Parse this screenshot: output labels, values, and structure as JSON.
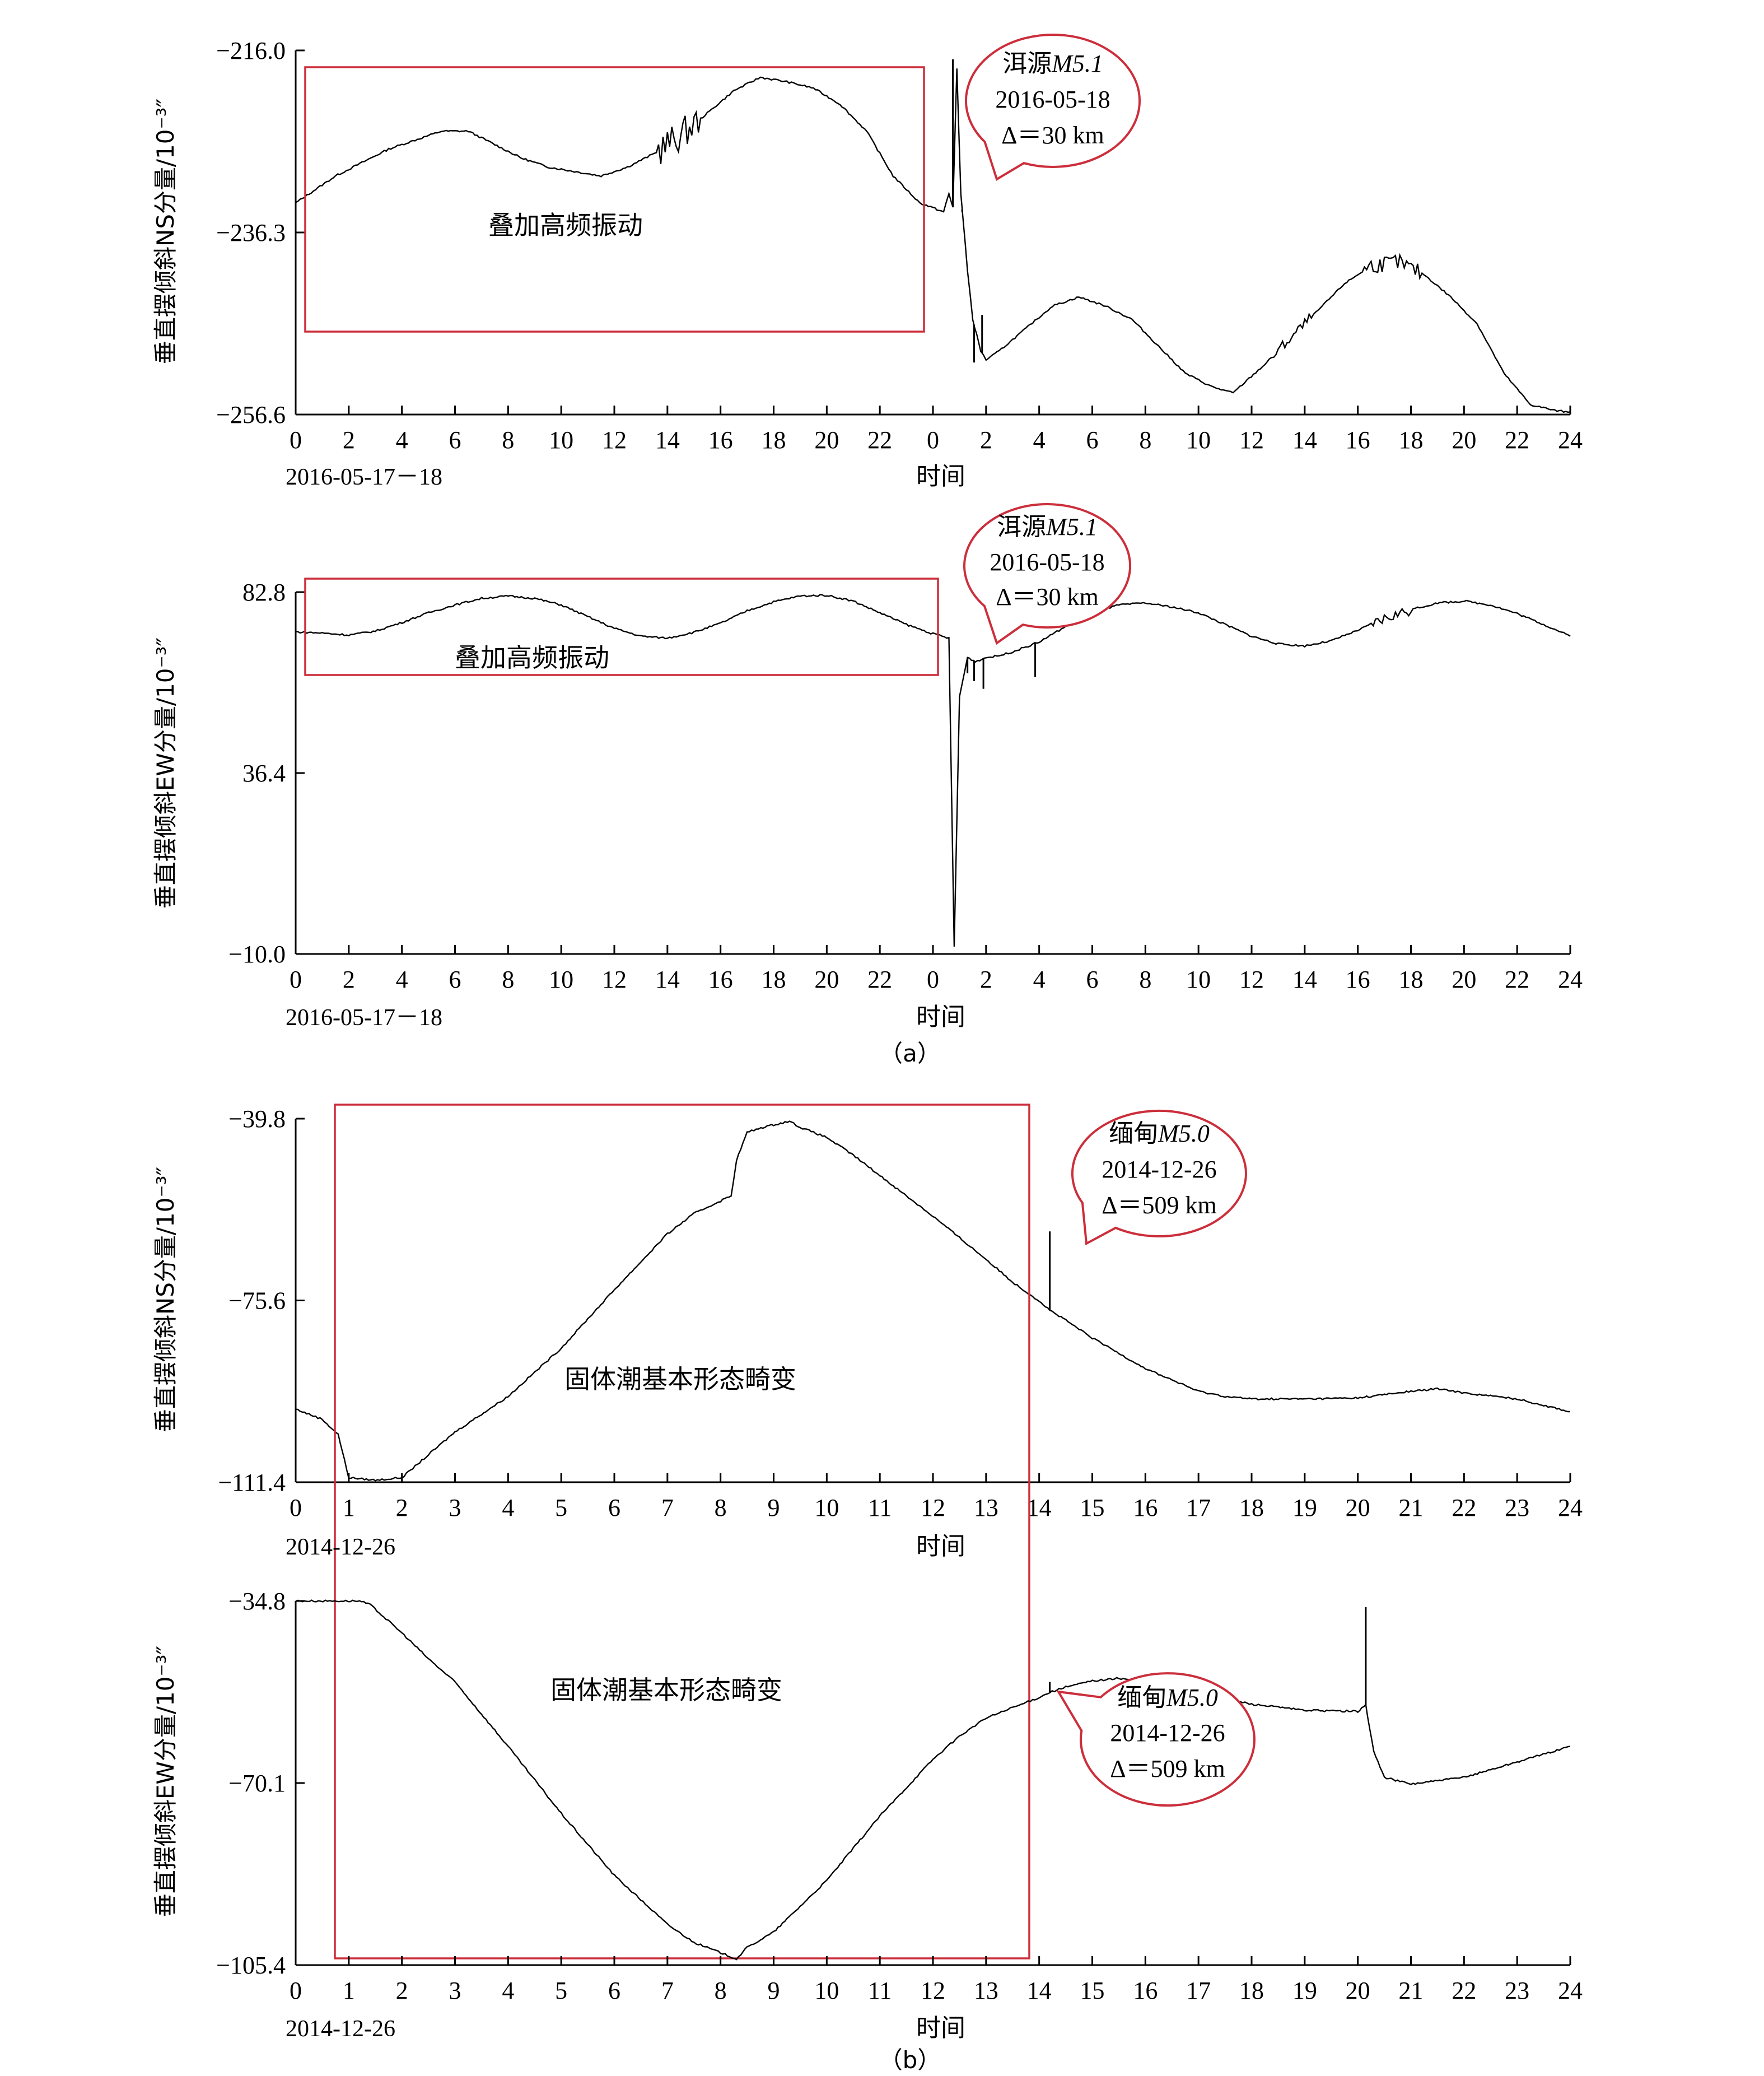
{
  "figure": {
    "panel_a_label": "（a）",
    "panel_b_label": "（b）",
    "colors": {
      "line": "#000000",
      "annotation": "#cc2e3b"
    }
  },
  "chart_data": [
    {
      "type": "line",
      "ylabel": "垂直摆倾斜NS分量/10⁻³″",
      "yticks": [
        "−216.0",
        "−236.3",
        "−256.6"
      ],
      "ylim": [
        -256.6,
        -216.0
      ],
      "xlim": [
        0,
        48
      ],
      "xticks": [
        "0",
        "2",
        "4",
        "6",
        "8",
        "10",
        "12",
        "14",
        "16",
        "18",
        "20",
        "22",
        "0",
        "2",
        "4",
        "6",
        "8",
        "10",
        "12",
        "14",
        "16",
        "18",
        "20",
        "22",
        "24"
      ],
      "xdate": "2016-05-17－18",
      "xlabel": "时间",
      "box_label": "叠加高频振动",
      "event": {
        "title": "洱源",
        "mag": "M5.1",
        "date": "2016-05-18",
        "delta": "Δ＝30 km"
      },
      "x": [
        0,
        1.5,
        2.5,
        3.5,
        4.5,
        5.5,
        6.5,
        7.5,
        8.5,
        9.5,
        10.5,
        11.5,
        12.5,
        13.5,
        14.5,
        15.5,
        16.5,
        17.5,
        18.5,
        19.5,
        20.5,
        21.5,
        22.5,
        23.5,
        24.4,
        24.6,
        24.75,
        24.9,
        25.05,
        25.3,
        25.5,
        25.8,
        26,
        26.5,
        27.5,
        28.5,
        29.5,
        30.5,
        31.5,
        32.5,
        33.5,
        34.5,
        35.3,
        36.5,
        37.5,
        38.5,
        39.5,
        40.5,
        41.5,
        42.5,
        43.5,
        44.5,
        45.5,
        46.5,
        47.5,
        48
      ],
      "y": [
        -233,
        -230,
        -228.5,
        -227,
        -226,
        -225,
        -225,
        -226.5,
        -228,
        -229,
        -229.5,
        -230,
        -229,
        -227.5,
        -225.5,
        -223,
        -220.5,
        -219,
        -219.5,
        -220.2,
        -222,
        -225,
        -230,
        -233,
        -234,
        -232,
        -233.5,
        -218,
        -232,
        -240.5,
        -246,
        -249.5,
        -250.5,
        -249.5,
        -247,
        -244.5,
        -243.5,
        -244.5,
        -246,
        -249,
        -252,
        -253.5,
        -254.2,
        -251,
        -248,
        -245,
        -242,
        -240,
        -239.6,
        -241,
        -243.5,
        -246.5,
        -252,
        -255.5,
        -256.2,
        -256.3
      ],
      "spikes": [
        {
          "x": 24.75,
          "y": -217
        },
        {
          "x": 25.1,
          "y": -234
        },
        {
          "x": 25.55,
          "y": -250.8
        },
        {
          "x": 25.85,
          "y": -245.5
        }
      ],
      "noise": [
        {
          "x0": 13.6,
          "x1": 15.2,
          "amp": 1.8
        },
        {
          "x0": 36.8,
          "x1": 38.2,
          "amp": 0.6
        },
        {
          "x0": 40.2,
          "x1": 42.4,
          "amp": 0.9
        }
      ]
    },
    {
      "type": "line",
      "ylabel": "垂直摆倾斜EW分量/10⁻³″",
      "yticks": [
        "82.8",
        "36.4",
        "−10.0"
      ],
      "ylim": [
        -10.0,
        82.8
      ],
      "xlim": [
        0,
        48
      ],
      "xticks": [
        "0",
        "2",
        "4",
        "6",
        "8",
        "10",
        "12",
        "14",
        "16",
        "18",
        "20",
        "22",
        "0",
        "2",
        "4",
        "6",
        "8",
        "10",
        "12",
        "14",
        "16",
        "18",
        "20",
        "22",
        "24"
      ],
      "xdate": "2016-05-17－18",
      "xlabel": "时间",
      "box_label": "叠加高频振动",
      "event": {
        "title": "洱源",
        "mag": "M5.1",
        "date": "2016-05-18",
        "delta": "Δ＝30 km"
      },
      "x": [
        0,
        1,
        2,
        3,
        4,
        5,
        6,
        7,
        8,
        9,
        10,
        11,
        12,
        13,
        14,
        15,
        16,
        17,
        18,
        19,
        20,
        21,
        22,
        23,
        24,
        24.6,
        24.8,
        25,
        25.3,
        25.6,
        26,
        26.5,
        27,
        28,
        29,
        30,
        31,
        32,
        33,
        34,
        35,
        36,
        37,
        38,
        39,
        40,
        41,
        42,
        43,
        44,
        45,
        46,
        47,
        48
      ],
      "y": [
        72.6,
        72.3,
        71.8,
        72.8,
        75,
        77.5,
        79.5,
        81.2,
        81.8,
        81.2,
        79.5,
        76.5,
        73.5,
        71.5,
        71,
        72.5,
        74.8,
        78,
        80.3,
        81.8,
        82,
        80.5,
        77.5,
        74.5,
        72.1,
        71,
        -8,
        56,
        66,
        65,
        66,
        66.5,
        67.5,
        70,
        74,
        77.5,
        79.5,
        80,
        79,
        77.5,
        74.5,
        71.5,
        69.5,
        69,
        70.3,
        73,
        76,
        78.3,
        80,
        80.5,
        79.5,
        77.3,
        74.5,
        71.5
      ],
      "spikes": [
        {
          "x": 24.6,
          "y": 71
        },
        {
          "x": 24.8,
          "y": -8
        },
        {
          "x": 25,
          "y": 56
        },
        {
          "x": 25.3,
          "y": 62
        },
        {
          "x": 25.55,
          "y": 60
        },
        {
          "x": 25.9,
          "y": 58
        },
        {
          "x": 27.85,
          "y": 61
        }
      ],
      "noise": [
        {
          "x0": 40.5,
          "x1": 42,
          "amp": 1.4
        }
      ]
    },
    {
      "type": "line",
      "ylabel": "垂直摆倾斜NS分量/10⁻³″",
      "yticks": [
        "−39.8",
        "−75.6",
        "−111.4"
      ],
      "ylim": [
        -111.4,
        -39.8
      ],
      "xlim": [
        0,
        24
      ],
      "xticks": [
        "0",
        "1",
        "2",
        "3",
        "4",
        "5",
        "6",
        "7",
        "8",
        "9",
        "10",
        "11",
        "12",
        "13",
        "14",
        "15",
        "16",
        "17",
        "18",
        "19",
        "20",
        "21",
        "22",
        "23",
        "24"
      ],
      "xdate": "2014-12-26",
      "xlabel": "时间",
      "box_label": "固体潮基本形态畸变",
      "event": {
        "title": "缅甸",
        "mag": "M5.0",
        "date": "2014-12-26",
        "delta": "Δ＝509 km"
      },
      "x": [
        0,
        0.5,
        0.8,
        1,
        1.5,
        2,
        2.5,
        3,
        4,
        5,
        6,
        7,
        7.5,
        8,
        8.2,
        8.3,
        8.5,
        8.8,
        9,
        9.3,
        9.5,
        10,
        10.5,
        11,
        12,
        13,
        13.5,
        14,
        14.2,
        14.5,
        15,
        16,
        17,
        17.5,
        18,
        19,
        20,
        21,
        21.5,
        22,
        23,
        24
      ],
      "y": [
        -97,
        -99,
        -102,
        -110.5,
        -111,
        -110.5,
        -106,
        -101.5,
        -94.5,
        -85,
        -73.5,
        -62.5,
        -58.5,
        -56,
        -55,
        -48,
        -42.5,
        -41.5,
        -41,
        -40.3,
        -41.5,
        -43.5,
        -47,
        -51,
        -59,
        -67.5,
        -72,
        -75.7,
        -77.5,
        -79.5,
        -83,
        -89,
        -93.5,
        -94.5,
        -95,
        -95,
        -94.8,
        -93.5,
        -93,
        -93.8,
        -95,
        -97.5
      ],
      "spikes": [
        {
          "x": 14.2,
          "y": -62
        }
      ],
      "noise": []
    },
    {
      "type": "line",
      "ylabel": "垂直摆倾斜EW分量/10⁻³″",
      "yticks": [
        "−34.8",
        "−70.1",
        "−105.4"
      ],
      "ylim": [
        -105.4,
        -34.8
      ],
      "xlim": [
        0,
        24
      ],
      "xticks": [
        "0",
        "1",
        "2",
        "3",
        "4",
        "5",
        "6",
        "7",
        "8",
        "9",
        "10",
        "11",
        "12",
        "13",
        "14",
        "15",
        "16",
        "17",
        "18",
        "19",
        "20",
        "21",
        "22",
        "23",
        "24"
      ],
      "xdate": "2014-12-26",
      "xlabel": "时间",
      "box_label": "固体潮基本形态畸变",
      "event": {
        "title": "缅甸",
        "mag": "M5.0",
        "date": "2014-12-26",
        "delta": "Δ＝509 km"
      },
      "x": [
        0,
        1.2,
        1.4,
        2,
        2.5,
        3,
        4,
        5,
        6,
        7,
        7.5,
        8,
        8.3,
        8.5,
        9,
        10,
        11,
        12,
        12.5,
        13,
        14,
        14.2,
        14.5,
        15,
        15.5,
        16,
        17,
        18,
        19,
        20,
        20.15,
        20.3,
        20.5,
        21,
        22,
        23,
        24
      ],
      "y": [
        -34.8,
        -34.8,
        -35.5,
        -41,
        -46,
        -50.5,
        -63,
        -76,
        -88,
        -97.5,
        -101,
        -103,
        -104.2,
        -102,
        -99,
        -89,
        -76.5,
        -65.5,
        -61,
        -57.5,
        -53.5,
        -52.5,
        -51.5,
        -50.3,
        -49.8,
        -50.3,
        -52.5,
        -54.8,
        -56,
        -56.2,
        -55,
        -64,
        -69,
        -70.3,
        -69,
        -66,
        -63
      ],
      "spikes": [
        {
          "x": 14.2,
          "y": -50.5
        },
        {
          "x": 20.15,
          "y": -36
        }
      ],
      "noise": []
    }
  ]
}
